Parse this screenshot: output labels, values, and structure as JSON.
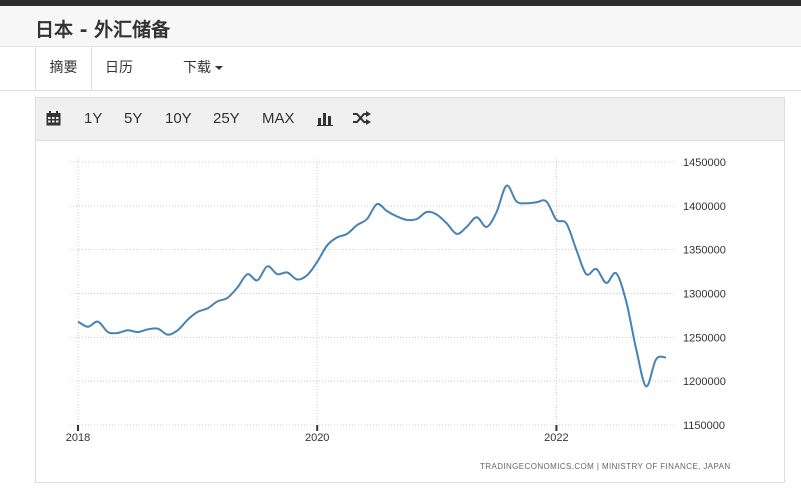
{
  "header": {
    "title": "日本 - 外汇储备"
  },
  "tabs": [
    {
      "label": "摘要",
      "active": true
    },
    {
      "label": "日历",
      "active": false
    },
    {
      "label": "下载",
      "active": false,
      "dropdown": true
    }
  ],
  "toolbar": {
    "calendar_icon": "calendar-icon",
    "ranges": [
      "1Y",
      "5Y",
      "10Y",
      "25Y",
      "MAX"
    ],
    "chart_type_icon": "bar-chart-icon",
    "compare_icon": "shuffle-icon"
  },
  "credit": "TRADINGECONOMICS.COM | MINISTRY OF FINANCE, JAPAN",
  "colors": {
    "line": "#4682b4",
    "grid": "#cccccc"
  },
  "chart_data": {
    "type": "line",
    "title": "",
    "xlabel": "",
    "ylabel": "",
    "x_ticks": [
      "2018",
      "2020",
      "2022"
    ],
    "y_ticks": [
      1450000,
      1400000,
      1350000,
      1300000,
      1250000,
      1200000,
      1150000
    ],
    "ylim": [
      1150000,
      1450000
    ],
    "xlim": [
      "2018-01",
      "2023-01"
    ],
    "grid": true,
    "axis_position": "right",
    "series": [
      {
        "x": [
          "2018-01",
          "2018-02",
          "2018-03",
          "2018-04",
          "2018-05",
          "2018-06",
          "2018-07",
          "2018-08",
          "2018-09",
          "2018-10",
          "2018-11",
          "2018-12",
          "2019-01",
          "2019-02",
          "2019-03",
          "2019-04",
          "2019-05",
          "2019-06",
          "2019-07",
          "2019-08",
          "2019-09",
          "2019-10",
          "2019-11",
          "2019-12",
          "2020-01",
          "2020-02",
          "2020-03",
          "2020-04",
          "2020-05",
          "2020-06",
          "2020-07",
          "2020-08",
          "2020-09",
          "2020-10",
          "2020-11",
          "2020-12",
          "2021-01",
          "2021-02",
          "2021-03",
          "2021-04",
          "2021-05",
          "2021-06",
          "2021-07",
          "2021-08",
          "2021-09",
          "2021-10",
          "2021-11",
          "2021-12",
          "2022-01",
          "2022-02",
          "2022-03",
          "2022-04",
          "2022-05",
          "2022-06",
          "2022-07",
          "2022-08",
          "2022-09",
          "2022-10",
          "2022-11",
          "2022-12"
        ],
        "values": [
          1268000,
          1262000,
          1268000,
          1256000,
          1255000,
          1258000,
          1256000,
          1259000,
          1260000,
          1253000,
          1258000,
          1270000,
          1279000,
          1283000,
          1291000,
          1295000,
          1307000,
          1322000,
          1315000,
          1331000,
          1322000,
          1324000,
          1316000,
          1321000,
          1336000,
          1355000,
          1364000,
          1368000,
          1378000,
          1385000,
          1402000,
          1394000,
          1388000,
          1384000,
          1385000,
          1393000,
          1390000,
          1380000,
          1368000,
          1376000,
          1387000,
          1376000,
          1393000,
          1423000,
          1405000,
          1403000,
          1404000,
          1405000,
          1384000,
          1380000,
          1350000,
          1322000,
          1328000,
          1312000,
          1323000,
          1291000,
          1237000,
          1194000,
          1225000,
          1227000
        ]
      }
    ]
  }
}
